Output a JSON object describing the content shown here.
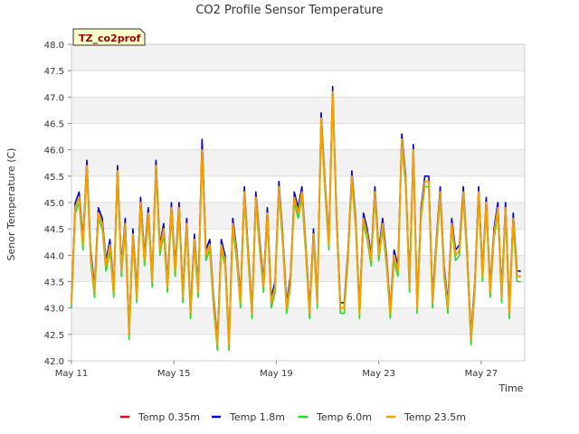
{
  "chart_data": {
    "type": "line",
    "title": "CO2 Profile Sensor Temperature",
    "xlabel": "Time",
    "ylabel": "Senor Temperature (C)",
    "ylim": [
      42.0,
      48.0
    ],
    "xlim": [
      0,
      17.7
    ],
    "x_ticks": [
      {
        "x": 0,
        "label": "May 11"
      },
      {
        "x": 4,
        "label": "May 15"
      },
      {
        "x": 8,
        "label": "May 19"
      },
      {
        "x": 12,
        "label": "May 23"
      },
      {
        "x": 16,
        "label": "May 27"
      }
    ],
    "y_ticks": [
      "42.0",
      "42.5",
      "43.0",
      "43.5",
      "44.0",
      "44.5",
      "45.0",
      "45.5",
      "46.0",
      "46.5",
      "47.0",
      "47.5",
      "48.0"
    ],
    "station_label": "TZ_co2prof",
    "grid": true,
    "legend_position": "bottom",
    "x": [
      0,
      0.15,
      0.3,
      0.45,
      0.6,
      0.75,
      0.9,
      1.05,
      1.2,
      1.35,
      1.5,
      1.65,
      1.8,
      1.95,
      2.1,
      2.25,
      2.4,
      2.55,
      2.7,
      2.85,
      3.0,
      3.15,
      3.3,
      3.45,
      3.6,
      3.75,
      3.9,
      4.05,
      4.2,
      4.35,
      4.5,
      4.65,
      4.8,
      4.95,
      5.1,
      5.25,
      5.4,
      5.55,
      5.7,
      5.85,
      6.0,
      6.15,
      6.3,
      6.45,
      6.6,
      6.75,
      6.9,
      7.05,
      7.2,
      7.35,
      7.5,
      7.65,
      7.8,
      7.95,
      8.1,
      8.25,
      8.4,
      8.55,
      8.7,
      8.85,
      9.0,
      9.15,
      9.3,
      9.45,
      9.6,
      9.75,
      9.9,
      10.05,
      10.2,
      10.35,
      10.5,
      10.65,
      10.8,
      10.95,
      11.1,
      11.25,
      11.4,
      11.55,
      11.7,
      11.85,
      12.0,
      12.15,
      12.3,
      12.45,
      12.6,
      12.75,
      12.9,
      13.05,
      13.2,
      13.35,
      13.5,
      13.65,
      13.8,
      13.95,
      14.1,
      14.25,
      14.4,
      14.55,
      14.7,
      14.85,
      15.0,
      15.15,
      15.3,
      15.45,
      15.6,
      15.75,
      15.9,
      16.05,
      16.2,
      16.35,
      16.5,
      16.65,
      16.8,
      16.95,
      17.1,
      17.25,
      17.4,
      17.55
    ],
    "series": [
      {
        "name": "Temp 0.35m",
        "color": "#e8001c",
        "values": [
          43.1,
          44.9,
          45.1,
          44.2,
          45.7,
          44.0,
          43.3,
          44.8,
          44.6,
          43.8,
          44.2,
          43.3,
          45.6,
          43.7,
          44.6,
          42.5,
          44.4,
          43.2,
          45.0,
          43.9,
          44.8,
          43.5,
          45.7,
          44.1,
          44.5,
          43.4,
          44.9,
          43.7,
          44.9,
          43.2,
          44.6,
          42.9,
          44.3,
          43.3,
          46.1,
          44.0,
          44.2,
          43.1,
          42.3,
          44.2,
          43.9,
          42.3,
          44.6,
          44.0,
          43.1,
          45.2,
          44.0,
          42.9,
          45.1,
          44.2,
          43.4,
          44.8,
          43.1,
          43.4,
          45.3,
          44.3,
          43.0,
          43.5,
          45.1,
          44.8,
          45.2,
          44.1,
          42.9,
          44.4,
          43.1,
          46.6,
          45.3,
          44.2,
          47.1,
          44.7,
          43.0,
          43.0,
          44.0,
          45.5,
          44.6,
          42.9,
          44.7,
          44.4,
          43.9,
          45.2,
          44.0,
          44.6,
          43.9,
          42.9,
          44.0,
          43.7,
          46.2,
          45.4,
          43.4,
          46.0,
          43.0,
          44.8,
          45.4,
          45.4,
          43.1,
          44.2,
          45.2,
          43.7,
          43.0,
          44.6,
          44.0,
          44.1,
          45.2,
          44.0,
          42.4,
          43.4,
          45.2,
          43.6,
          45.0,
          43.3,
          44.4,
          44.9,
          43.2,
          44.9,
          42.9,
          44.7,
          43.6,
          43.6
        ]
      },
      {
        "name": "Temp 1.8m",
        "color": "#0000d0",
        "values": [
          43.2,
          45.0,
          45.2,
          44.3,
          45.8,
          44.1,
          43.4,
          44.9,
          44.7,
          43.9,
          44.3,
          43.4,
          45.7,
          43.8,
          44.7,
          42.6,
          44.5,
          43.3,
          45.1,
          44.0,
          44.9,
          43.6,
          45.8,
          44.2,
          44.6,
          43.5,
          45.0,
          43.8,
          45.0,
          43.3,
          44.7,
          43.0,
          44.4,
          43.4,
          46.2,
          44.1,
          44.3,
          43.2,
          42.4,
          44.3,
          44.0,
          42.4,
          44.7,
          44.1,
          43.2,
          45.3,
          44.1,
          43.0,
          45.2,
          44.3,
          43.5,
          44.9,
          43.2,
          43.5,
          45.4,
          44.4,
          43.1,
          43.6,
          45.2,
          44.9,
          45.3,
          44.2,
          43.0,
          44.5,
          43.2,
          46.7,
          45.4,
          44.3,
          47.2,
          44.8,
          43.1,
          43.1,
          44.1,
          45.6,
          44.7,
          43.0,
          44.8,
          44.5,
          44.0,
          45.3,
          44.1,
          44.7,
          44.0,
          43.0,
          44.1,
          43.8,
          46.3,
          45.5,
          43.5,
          46.1,
          43.1,
          44.9,
          45.5,
          45.5,
          43.2,
          44.3,
          45.3,
          43.8,
          43.1,
          44.7,
          44.1,
          44.2,
          45.3,
          44.1,
          42.5,
          43.5,
          45.3,
          43.7,
          45.1,
          43.4,
          44.5,
          45.0,
          43.3,
          45.0,
          43.0,
          44.8,
          43.7,
          43.7
        ]
      },
      {
        "name": "Temp 6.0m",
        "color": "#22dd22",
        "values": [
          43.0,
          44.8,
          45.0,
          44.1,
          45.6,
          43.9,
          43.2,
          44.7,
          44.5,
          43.7,
          44.1,
          43.2,
          45.5,
          43.6,
          44.5,
          42.4,
          44.3,
          43.1,
          44.9,
          43.8,
          44.7,
          43.4,
          45.6,
          44.0,
          44.4,
          43.3,
          44.8,
          43.6,
          44.8,
          43.1,
          44.5,
          42.8,
          44.2,
          43.2,
          46.0,
          43.9,
          44.1,
          43.0,
          42.2,
          44.1,
          43.8,
          42.2,
          44.5,
          43.9,
          43.0,
          45.1,
          43.9,
          42.8,
          45.0,
          44.1,
          43.3,
          44.7,
          43.0,
          43.3,
          45.2,
          44.2,
          42.9,
          43.4,
          45.0,
          44.7,
          45.1,
          44.0,
          42.8,
          44.3,
          43.0,
          46.5,
          45.2,
          44.1,
          47.0,
          44.6,
          42.9,
          42.9,
          43.9,
          45.4,
          44.5,
          42.8,
          44.6,
          44.3,
          43.8,
          45.1,
          43.9,
          44.5,
          43.8,
          42.8,
          43.9,
          43.6,
          46.1,
          45.3,
          43.3,
          45.9,
          42.9,
          44.7,
          45.3,
          45.3,
          43.0,
          44.1,
          45.1,
          43.6,
          42.9,
          44.5,
          43.9,
          44.0,
          45.1,
          43.9,
          42.3,
          43.3,
          45.1,
          43.5,
          44.9,
          43.2,
          44.3,
          44.8,
          43.1,
          44.8,
          42.8,
          44.6,
          43.5,
          43.5
        ]
      },
      {
        "name": "Temp 23.5m",
        "color": "#f5a000",
        "values": [
          43.1,
          44.9,
          45.1,
          44.2,
          45.7,
          44.0,
          43.3,
          44.8,
          44.6,
          43.8,
          44.2,
          43.3,
          45.6,
          43.7,
          44.6,
          42.5,
          44.4,
          43.2,
          45.0,
          43.9,
          44.8,
          43.5,
          45.7,
          44.1,
          44.5,
          43.4,
          44.9,
          43.7,
          44.9,
          43.2,
          44.6,
          42.9,
          44.3,
          43.3,
          46.0,
          44.0,
          44.2,
          43.1,
          42.3,
          44.2,
          43.9,
          42.3,
          44.6,
          44.0,
          43.1,
          45.2,
          44.0,
          42.9,
          45.1,
          44.2,
          43.4,
          44.8,
          43.1,
          43.4,
          45.3,
          44.3,
          43.0,
          43.5,
          45.1,
          44.8,
          45.2,
          44.1,
          42.9,
          44.4,
          43.1,
          46.6,
          45.3,
          44.2,
          47.1,
          44.7,
          43.0,
          43.0,
          44.0,
          45.5,
          44.6,
          42.9,
          44.7,
          44.4,
          43.9,
          45.2,
          44.0,
          44.6,
          43.9,
          42.9,
          44.0,
          43.7,
          46.2,
          45.4,
          43.4,
          46.0,
          43.0,
          44.8,
          45.4,
          45.4,
          43.1,
          44.2,
          45.2,
          43.7,
          43.0,
          44.6,
          44.0,
          44.1,
          45.2,
          44.0,
          42.4,
          43.4,
          45.2,
          43.6,
          45.0,
          43.3,
          44.4,
          44.9,
          43.2,
          44.9,
          42.9,
          44.7,
          43.6,
          43.6
        ]
      }
    ]
  }
}
